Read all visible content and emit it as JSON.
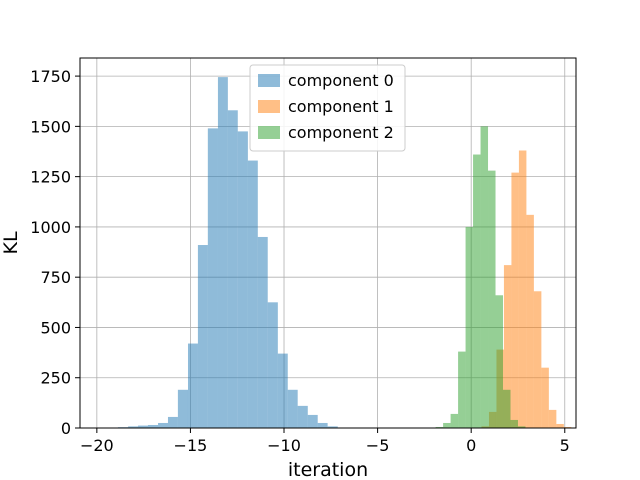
{
  "chart_data": {
    "type": "bar",
    "subtype": "overlapping-histogram",
    "title": "",
    "xlabel": "iteration",
    "ylabel": "KL",
    "xlim": [
      -20.9,
      5.6
    ],
    "ylim": [
      0,
      1840
    ],
    "x_ticks": [
      -20,
      -15,
      -10,
      -5,
      0,
      5
    ],
    "x_tick_labels": [
      "−20",
      "−15",
      "−10",
      "−5",
      "0",
      "5"
    ],
    "y_ticks": [
      0,
      250,
      500,
      750,
      1000,
      1250,
      1500,
      1750
    ],
    "y_tick_labels": [
      "0",
      "250",
      "500",
      "750",
      "1000",
      "1250",
      "1500",
      "1750"
    ],
    "grid": true,
    "legend_position": "top-center",
    "bar_alpha": 0.5,
    "series": [
      {
        "name": "component 0",
        "color": "#1f77b4",
        "bins": [
          {
            "x0": -19.4,
            "x1": -18.87,
            "count": 2
          },
          {
            "x0": -18.87,
            "x1": -18.33,
            "count": 4
          },
          {
            "x0": -18.33,
            "x1": -17.8,
            "count": 8
          },
          {
            "x0": -17.8,
            "x1": -17.27,
            "count": 12
          },
          {
            "x0": -17.27,
            "x1": -16.73,
            "count": 15
          },
          {
            "x0": -16.73,
            "x1": -16.2,
            "count": 25
          },
          {
            "x0": -16.2,
            "x1": -15.67,
            "count": 55
          },
          {
            "x0": -15.67,
            "x1": -15.13,
            "count": 190
          },
          {
            "x0": -15.13,
            "x1": -14.6,
            "count": 420
          },
          {
            "x0": -14.6,
            "x1": -14.07,
            "count": 910
          },
          {
            "x0": -14.07,
            "x1": -13.53,
            "count": 1490
          },
          {
            "x0": -13.53,
            "x1": -13.0,
            "count": 1745
          },
          {
            "x0": -13.0,
            "x1": -12.47,
            "count": 1580
          },
          {
            "x0": -12.47,
            "x1": -11.93,
            "count": 1475
          },
          {
            "x0": -11.93,
            "x1": -11.4,
            "count": 1330
          },
          {
            "x0": -11.4,
            "x1": -10.87,
            "count": 950
          },
          {
            "x0": -10.87,
            "x1": -10.33,
            "count": 625
          },
          {
            "x0": -10.33,
            "x1": -9.8,
            "count": 370
          },
          {
            "x0": -9.8,
            "x1": -9.27,
            "count": 190
          },
          {
            "x0": -9.27,
            "x1": -8.73,
            "count": 110
          },
          {
            "x0": -8.73,
            "x1": -8.2,
            "count": 65
          },
          {
            "x0": -8.2,
            "x1": -7.67,
            "count": 25
          },
          {
            "x0": -7.67,
            "x1": -7.13,
            "count": 8
          }
        ]
      },
      {
        "name": "component 1",
        "color": "#ff7f0e",
        "bins": [
          {
            "x0": 0.55,
            "x1": 0.95,
            "count": 8
          },
          {
            "x0": 0.95,
            "x1": 1.35,
            "count": 80
          },
          {
            "x0": 1.35,
            "x1": 1.75,
            "count": 390
          },
          {
            "x0": 1.75,
            "x1": 2.15,
            "count": 810
          },
          {
            "x0": 2.15,
            "x1": 2.55,
            "count": 1270
          },
          {
            "x0": 2.55,
            "x1": 2.95,
            "count": 1380
          },
          {
            "x0": 2.95,
            "x1": 3.35,
            "count": 1060
          },
          {
            "x0": 3.35,
            "x1": 3.75,
            "count": 680
          },
          {
            "x0": 3.75,
            "x1": 4.15,
            "count": 300
          },
          {
            "x0": 4.15,
            "x1": 4.55,
            "count": 90
          },
          {
            "x0": 4.55,
            "x1": 4.95,
            "count": 20
          },
          {
            "x0": 4.95,
            "x1": 5.35,
            "count": 5
          }
        ]
      },
      {
        "name": "component 2",
        "color": "#2ca02c",
        "bins": [
          {
            "x0": -1.9,
            "x1": -1.5,
            "count": 5
          },
          {
            "x0": -1.5,
            "x1": -1.1,
            "count": 25
          },
          {
            "x0": -1.1,
            "x1": -0.7,
            "count": 70
          },
          {
            "x0": -0.7,
            "x1": -0.3,
            "count": 380
          },
          {
            "x0": -0.3,
            "x1": 0.1,
            "count": 1000
          },
          {
            "x0": 0.1,
            "x1": 0.5,
            "count": 1360
          },
          {
            "x0": 0.5,
            "x1": 0.9,
            "count": 1500
          },
          {
            "x0": 0.9,
            "x1": 1.3,
            "count": 1280
          },
          {
            "x0": 1.3,
            "x1": 1.7,
            "count": 660
          },
          {
            "x0": 1.7,
            "x1": 2.1,
            "count": 190
          },
          {
            "x0": 2.1,
            "x1": 2.5,
            "count": 40
          },
          {
            "x0": 2.5,
            "x1": 2.9,
            "count": 8
          }
        ]
      }
    ]
  }
}
